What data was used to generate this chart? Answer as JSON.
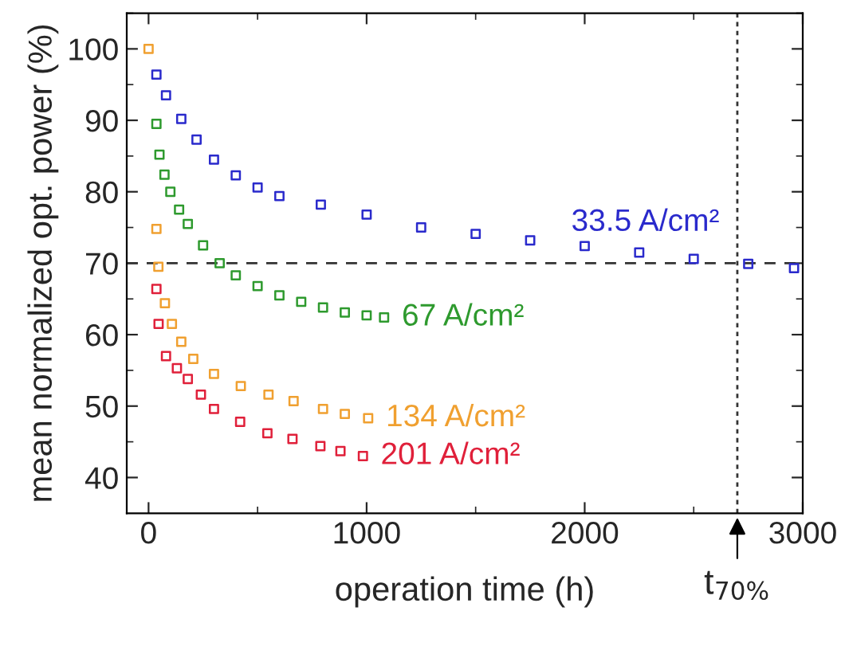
{
  "chart_data": {
    "type": "scatter",
    "xlabel": "operation time (h)",
    "ylabel": "mean normalized opt. power (%)",
    "xlim": [
      -100,
      3000
    ],
    "xticks": [
      0,
      1000,
      2000,
      3000
    ],
    "ylim": [
      35,
      105
    ],
    "yticks": [
      40,
      50,
      60,
      70,
      80,
      90,
      100
    ],
    "marker": "square",
    "grid": false,
    "legend": false,
    "ref_lines": [
      {
        "axis": "y",
        "value": 70,
        "line_style": "dashed",
        "color": "#333333"
      },
      {
        "axis": "x",
        "value": 2700,
        "line_style": "dotted",
        "color": "#333333",
        "label": "t$_{70%}$"
      }
    ],
    "series": [
      {
        "name": "33.5 A/cm²",
        "color": "#2a2acc",
        "x": [
          36,
          80,
          150,
          220,
          300,
          400,
          500,
          600,
          790,
          1000,
          1250,
          1500,
          1750,
          2000,
          2250,
          2500,
          2750,
          2960
        ],
        "values": [
          96.4,
          93.5,
          90.2,
          87.3,
          84.5,
          82.3,
          80.6,
          79.4,
          78.2,
          76.8,
          75,
          74.1,
          73.2,
          72.4,
          71.5,
          70.6,
          69.9,
          69.3
        ]
      },
      {
        "name": "67 A/cm²",
        "color": "#2e9a2e",
        "x": [
          36,
          50,
          73,
          100,
          140,
          180,
          250,
          326,
          400,
          500,
          600,
          700,
          800,
          900,
          1000,
          1080
        ],
        "values": [
          89.5,
          85.2,
          82.4,
          80,
          77.5,
          75.5,
          72.5,
          70,
          68.3,
          66.8,
          65.5,
          64.6,
          63.8,
          63.1,
          62.7,
          62.4
        ]
      },
      {
        "name": "134 A/cm²",
        "color": "#f0a030",
        "x": [
          0,
          36,
          45,
          75,
          107,
          150,
          205,
          300,
          423,
          550,
          665,
          800,
          900,
          1007
        ],
        "values": [
          100,
          74.8,
          69.5,
          64.4,
          61.5,
          59,
          56.6,
          54.5,
          52.8,
          51.6,
          50.7,
          49.6,
          48.9,
          48.3
        ]
      },
      {
        "name": "201 A/cm²",
        "color": "#e0203a",
        "x": [
          36,
          46,
          80,
          130,
          180,
          240,
          300,
          420,
          545,
          660,
          788,
          880,
          983
        ],
        "values": [
          66.4,
          61.5,
          57,
          55.3,
          53.8,
          51.6,
          49.6,
          47.8,
          46.2,
          45.4,
          44.4,
          43.7,
          43
        ]
      }
    ]
  }
}
